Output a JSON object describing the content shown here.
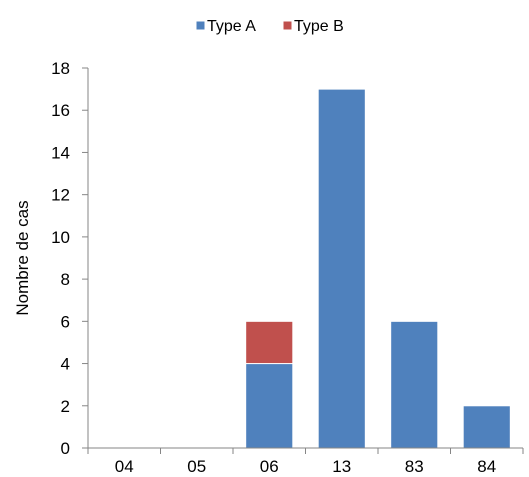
{
  "chart_data": {
    "type": "bar",
    "stacked": true,
    "categories": [
      "04",
      "05",
      "06",
      "13",
      "83",
      "84"
    ],
    "series": [
      {
        "name": "Type A",
        "values": [
          0,
          0,
          4,
          17,
          6,
          2
        ],
        "color": "#4F81BD"
      },
      {
        "name": "Type B",
        "values": [
          0,
          0,
          2,
          0,
          0,
          0
        ],
        "color": "#C0504D"
      }
    ],
    "title": "",
    "xlabel": "",
    "ylabel": "Nombre de cas",
    "ylim": [
      0,
      18
    ],
    "yticks": [
      0,
      2,
      4,
      6,
      8,
      10,
      12,
      14,
      16,
      18
    ],
    "grid": false,
    "legend_position": "top"
  }
}
